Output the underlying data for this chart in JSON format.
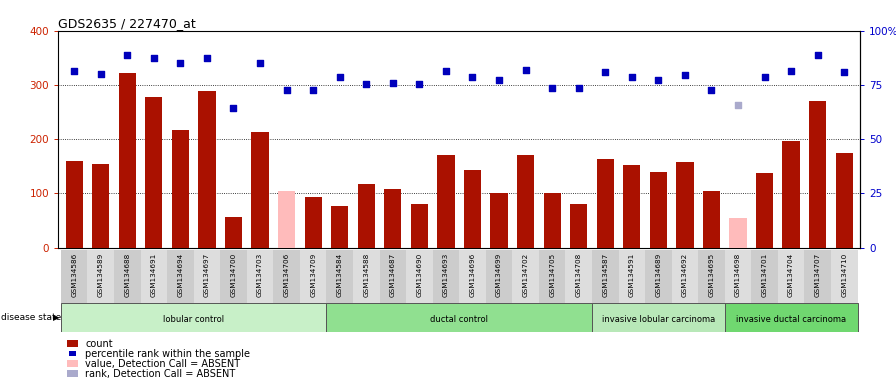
{
  "title": "GDS2635 / 227470_at",
  "samples": [
    "GSM134586",
    "GSM134589",
    "GSM134688",
    "GSM134691",
    "GSM134694",
    "GSM134697",
    "GSM134700",
    "GSM134703",
    "GSM134706",
    "GSM134709",
    "GSM134584",
    "GSM134588",
    "GSM134687",
    "GSM134690",
    "GSM134693",
    "GSM134696",
    "GSM134699",
    "GSM134702",
    "GSM134705",
    "GSM134708",
    "GSM134587",
    "GSM134591",
    "GSM134689",
    "GSM134692",
    "GSM134695",
    "GSM134698",
    "GSM134701",
    "GSM134704",
    "GSM134707",
    "GSM134710"
  ],
  "counts": [
    160,
    155,
    322,
    278,
    217,
    288,
    57,
    213,
    104,
    93,
    77,
    117,
    109,
    80,
    170,
    143,
    100,
    170,
    100,
    80,
    163,
    153,
    140,
    158,
    105,
    55,
    138,
    197,
    270,
    175
  ],
  "absent_count": [
    false,
    false,
    false,
    false,
    false,
    false,
    false,
    false,
    true,
    false,
    false,
    false,
    false,
    false,
    false,
    false,
    false,
    false,
    false,
    false,
    false,
    false,
    false,
    false,
    false,
    true,
    false,
    false,
    false,
    false
  ],
  "ranks": [
    325,
    320,
    355,
    350,
    340,
    350,
    258,
    340,
    290,
    290,
    315,
    302,
    303,
    302,
    325,
    315,
    310,
    328,
    295,
    295,
    323,
    315,
    310,
    318,
    290,
    263,
    315,
    325,
    355,
    323
  ],
  "absent_rank": [
    false,
    false,
    false,
    false,
    false,
    false,
    false,
    false,
    false,
    false,
    false,
    false,
    false,
    false,
    false,
    false,
    false,
    false,
    false,
    false,
    false,
    false,
    false,
    false,
    false,
    true,
    false,
    false,
    false,
    false
  ],
  "groups": [
    {
      "label": "lobular control",
      "start": 0,
      "end": 9,
      "color": "#c8f0c8"
    },
    {
      "label": "ductal control",
      "start": 10,
      "end": 19,
      "color": "#90e090"
    },
    {
      "label": "invasive lobular carcinoma",
      "start": 20,
      "end": 24,
      "color": "#b8e8b8"
    },
    {
      "label": "invasive ductal carcinoma",
      "start": 25,
      "end": 29,
      "color": "#70d870"
    }
  ],
  "bar_color_normal": "#aa1100",
  "bar_color_absent": "#ffbbbb",
  "rank_color_normal": "#0000bb",
  "rank_color_absent": "#aaaacc",
  "ylim_left": [
    0,
    400
  ],
  "ylim_right": [
    0,
    100
  ],
  "yticks_left": [
    0,
    100,
    200,
    300,
    400
  ],
  "yticks_right": [
    0,
    25,
    50,
    75,
    100
  ],
  "ylabel_right_labels": [
    "0",
    "25",
    "50",
    "75",
    "100%"
  ],
  "grid_values": [
    100,
    200,
    300
  ],
  "background_color": "#ffffff"
}
